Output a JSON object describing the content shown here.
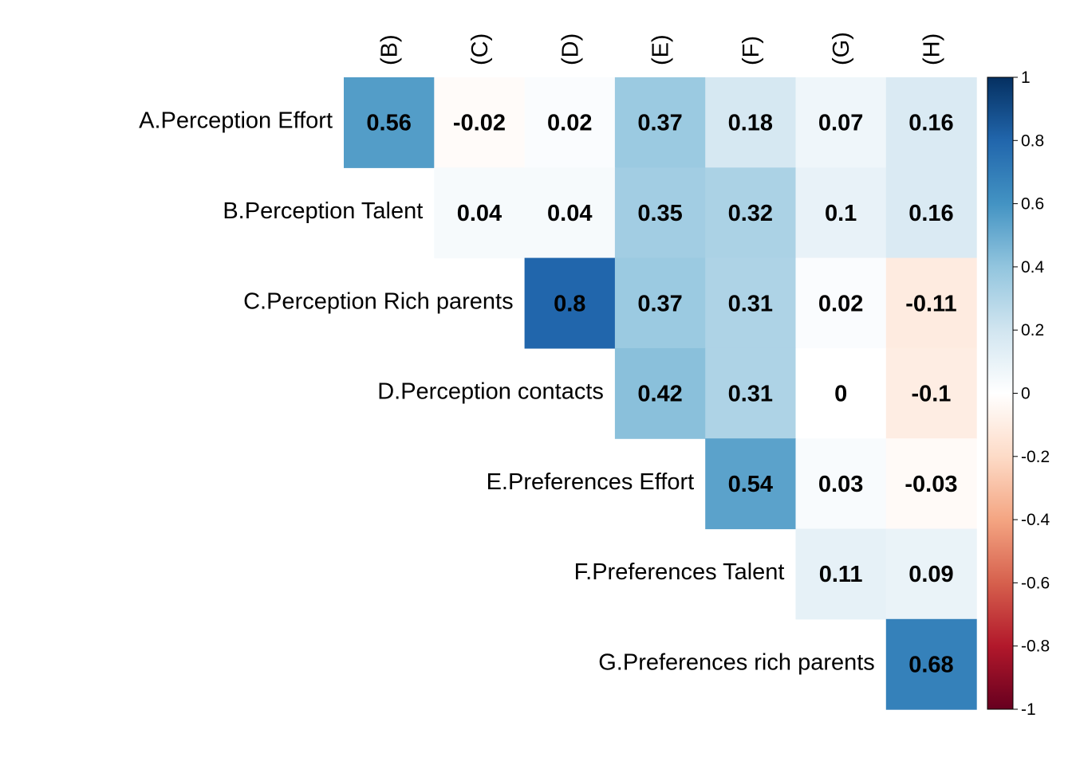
{
  "chart_data": {
    "type": "heatmap",
    "title": "",
    "row_labels": [
      "A.Perception Effort",
      "B.Perception Talent",
      "C.Perception Rich parents",
      "D.Perception contacts",
      "E.Preferences Effort",
      "F.Preferences Talent",
      "G.Preferences rich parents"
    ],
    "col_labels": [
      "(B)",
      "(C)",
      "(D)",
      "(E)",
      "(F)",
      "(G)",
      "(H)"
    ],
    "values": [
      [
        0.56,
        -0.02,
        0.02,
        0.37,
        0.18,
        0.07,
        0.16
      ],
      [
        null,
        0.04,
        0.04,
        0.35,
        0.32,
        0.1,
        0.16
      ],
      [
        null,
        null,
        0.8,
        0.37,
        0.31,
        0.02,
        -0.11
      ],
      [
        null,
        null,
        null,
        0.42,
        0.31,
        0,
        -0.1
      ],
      [
        null,
        null,
        null,
        null,
        0.54,
        0.03,
        -0.03
      ],
      [
        null,
        null,
        null,
        null,
        null,
        0.11,
        0.09
      ],
      [
        null,
        null,
        null,
        null,
        null,
        null,
        0.68
      ]
    ],
    "colorbar": {
      "ticks": [
        1,
        0.8,
        0.6,
        0.4,
        0.2,
        0,
        -0.2,
        -0.4,
        -0.6,
        -0.8,
        -1
      ],
      "range": [
        -1,
        1
      ],
      "palette": [
        "#67001F",
        "#B2182B",
        "#D6604D",
        "#F4A582",
        "#FDDBC7",
        "#FFFFFF",
        "#D1E5F0",
        "#92C5DE",
        "#4393C3",
        "#2166AC",
        "#053061"
      ]
    }
  }
}
